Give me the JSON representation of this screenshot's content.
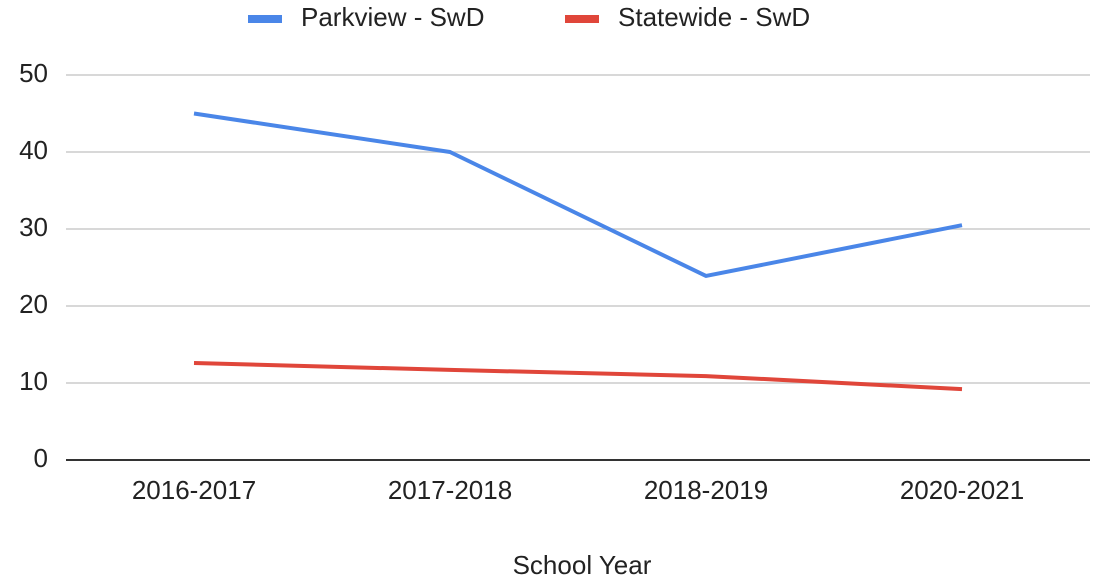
{
  "chart_data": {
    "type": "line",
    "x_label": "School Year",
    "categories": [
      "2016-2017",
      "2017-2018",
      "2018-2019",
      "2020-2021"
    ],
    "series": [
      {
        "name": "Parkview - SwD",
        "color": "#4a86e8",
        "values": [
          45,
          40,
          23.9,
          30.5
        ]
      },
      {
        "name": "Statewide - SwD",
        "color": "#e0463a",
        "values": [
          12.6,
          11.7,
          10.9,
          9.2
        ]
      }
    ],
    "ylim": [
      0,
      50
    ],
    "yticks": [
      0,
      10,
      20,
      30,
      40,
      50
    ],
    "grid": true,
    "legend": "top"
  }
}
